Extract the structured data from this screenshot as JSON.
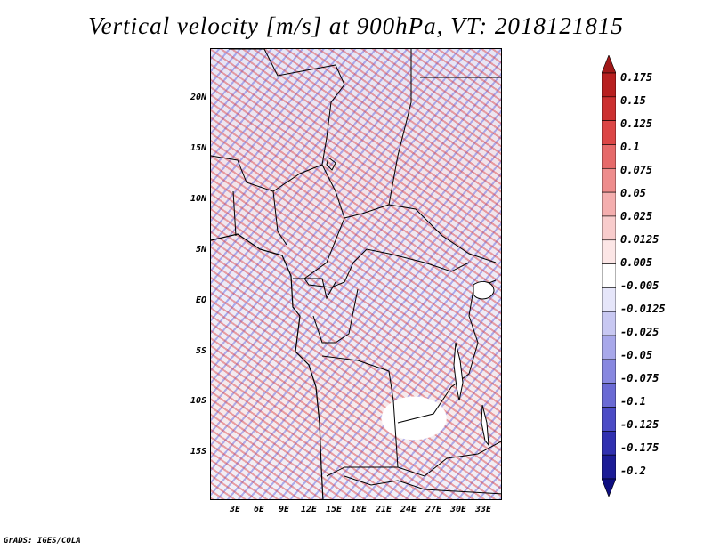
{
  "title": "Vertical velocity [m/s] at 900hPa, VT: 2018121815",
  "lat_labels": [
    "20N",
    "15N",
    "10N",
    "5N",
    "EQ",
    "5S",
    "10S",
    "15S"
  ],
  "lon_labels": [
    "3E",
    "6E",
    "9E",
    "12E",
    "15E",
    "18E",
    "21E",
    "24E",
    "27E",
    "30E",
    "33E"
  ],
  "colorbar": {
    "labels": [
      "0.175",
      "0.15",
      "0.125",
      "0.1",
      "0.075",
      "0.05",
      "0.025",
      "0.0125",
      "0.005",
      "-0.005",
      "-0.0125",
      "-0.025",
      "-0.05",
      "-0.075",
      "-0.1",
      "-0.125",
      "-0.175",
      "-0.2"
    ],
    "colors": [
      "#a01818",
      "#b82020",
      "#cc3030",
      "#dc4646",
      "#e66a6a",
      "#ee8c8c",
      "#f4aeae",
      "#f8cccc",
      "#fce6e6",
      "#ffffff",
      "#e6e6fa",
      "#c8c8f2",
      "#a8a8ea",
      "#8888e0",
      "#6a6ad4",
      "#4c4cc6",
      "#3030b0",
      "#1c1c96",
      "#0e0e80"
    ]
  },
  "footer": "GrADS: IGES/COLA"
}
